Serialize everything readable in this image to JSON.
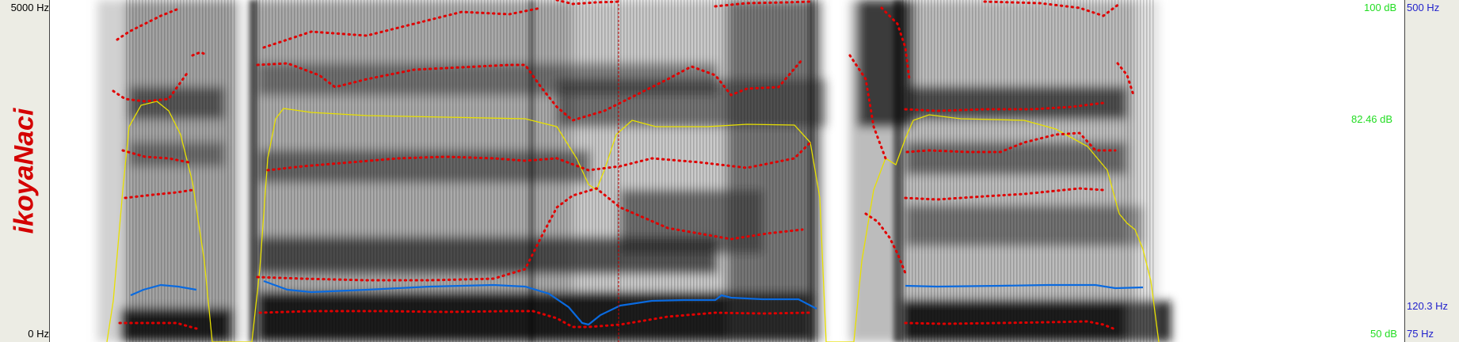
{
  "word": "ikoyaNaci",
  "left_axis": {
    "top": "5000 Hz",
    "bottom": "0 Hz"
  },
  "intensity_axis": {
    "top": "100 dB",
    "mid": "82.46 dB",
    "bottom": "50 dB"
  },
  "pitch_axis": {
    "top": "500 Hz",
    "mid": "120.3 Hz",
    "bottom": "75 Hz"
  },
  "colors": {
    "word": "#d40000",
    "formant": "#e00000",
    "pitch": "#0a6adf",
    "intensity": "#e8e000",
    "db": "#22dd22",
    "hz": "#2222cc"
  },
  "icons": [
    "spectrogram",
    "formant-track",
    "pitch-contour",
    "intensity-contour",
    "cursor-line"
  ]
}
